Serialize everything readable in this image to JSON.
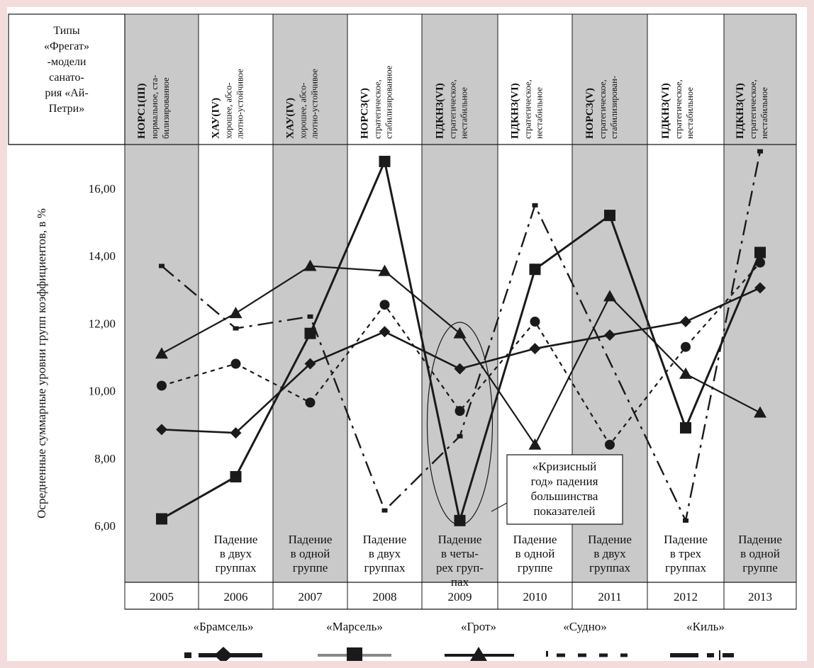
{
  "chart_data": {
    "type": "line",
    "ylabel": "Осредненные суммарные уровни групп коэффициентов, в %",
    "y_ticks": [
      "6,00",
      "8,00",
      "10,00",
      "12,00",
      "14,00",
      "16,00"
    ],
    "ylim": [
      5.2,
      17.2
    ],
    "grid": false,
    "header_title": [
      "Типы",
      "«Фрегат»",
      "-модели",
      "санато-",
      "рия «Ай-",
      "Петри»"
    ],
    "categories": [
      "2005",
      "2006",
      "2007",
      "2008",
      "2009",
      "2010",
      "2011",
      "2012",
      "2013"
    ],
    "shaded_columns": [
      0,
      2,
      4,
      6,
      8
    ],
    "column_types": [
      {
        "code": "НОРС1(III)",
        "desc1": "нормальное, ста-",
        "desc2": "билизированное"
      },
      {
        "code": "ХАУ(IV)",
        "desc1": "хорошее, абсо-",
        "desc2": "лютно-устойчивое"
      },
      {
        "code": "ХАУ(IV)",
        "desc1": "хорошее, абсо-",
        "desc2": "лютно-устойчивое"
      },
      {
        "code": "НОРС3(V)",
        "desc1": "стратегическое,",
        "desc2": "стабилизированное"
      },
      {
        "code": "ПДКН3(VI)",
        "desc1": "стратегическое,",
        "desc2": "нестабильное"
      },
      {
        "code": "ПДКН3(VI)",
        "desc1": "стратегическое,",
        "desc2": "нестабильное"
      },
      {
        "code": "НОРС3(V)",
        "desc1": "стратегическое,",
        "desc2": "стабилизирован-"
      },
      {
        "code": "ПДКН3(VI)",
        "desc1": "стратегическое,",
        "desc2": "нестабильное"
      },
      {
        "code": "ПДКН3(VI)",
        "desc1": "стратегическое,",
        "desc2": "нестабильное"
      }
    ],
    "col_notes": [
      [],
      [
        "Падение",
        "в двух",
        "группах"
      ],
      [
        "Падение",
        "в одной",
        "группе"
      ],
      [
        "Падение",
        "в двух",
        "группах"
      ],
      [
        "Падение",
        "в четы-",
        "рех груп-",
        "пах"
      ],
      [
        "Падение",
        "в одной",
        "группе"
      ],
      [
        "Падение",
        "в двух",
        "группах"
      ],
      [
        "Падение",
        "в трех",
        "группах"
      ],
      [
        "Падение",
        "в одной",
        "группе"
      ]
    ],
    "annotation": [
      "«Кризисный",
      "год» падения",
      "большинства",
      "показателей"
    ],
    "series": [
      {
        "name": "«Брамсель»",
        "marker": "diamond",
        "values": [
          8.85,
          8.75,
          10.8,
          11.75,
          10.65,
          11.25,
          11.65,
          12.05,
          13.05
        ]
      },
      {
        "name": "«Марсель»",
        "marker": "square",
        "values": [
          6.2,
          7.45,
          11.7,
          16.8,
          6.15,
          13.6,
          15.2,
          8.9,
          14.1
        ]
      },
      {
        "name": "«Грот»",
        "marker": "triangle",
        "values": [
          11.1,
          12.3,
          13.7,
          13.55,
          11.7,
          8.4,
          12.8,
          10.5,
          9.35
        ]
      },
      {
        "name": "«Судно»",
        "marker": "circle",
        "values": [
          10.15,
          10.8,
          9.65,
          12.55,
          9.4,
          12.05,
          8.4,
          11.3,
          13.8
        ]
      },
      {
        "name": "«Киль»",
        "marker": "dash",
        "values": [
          13.7,
          11.85,
          12.2,
          6.45,
          8.65,
          15.5,
          null,
          6.15,
          17.1
        ]
      }
    ],
    "colors": {
      "shade": "#c9c9c9",
      "line": "#1a1a1a",
      "marsel_legend": "#888888",
      "border": "#f3dcdc"
    }
  }
}
